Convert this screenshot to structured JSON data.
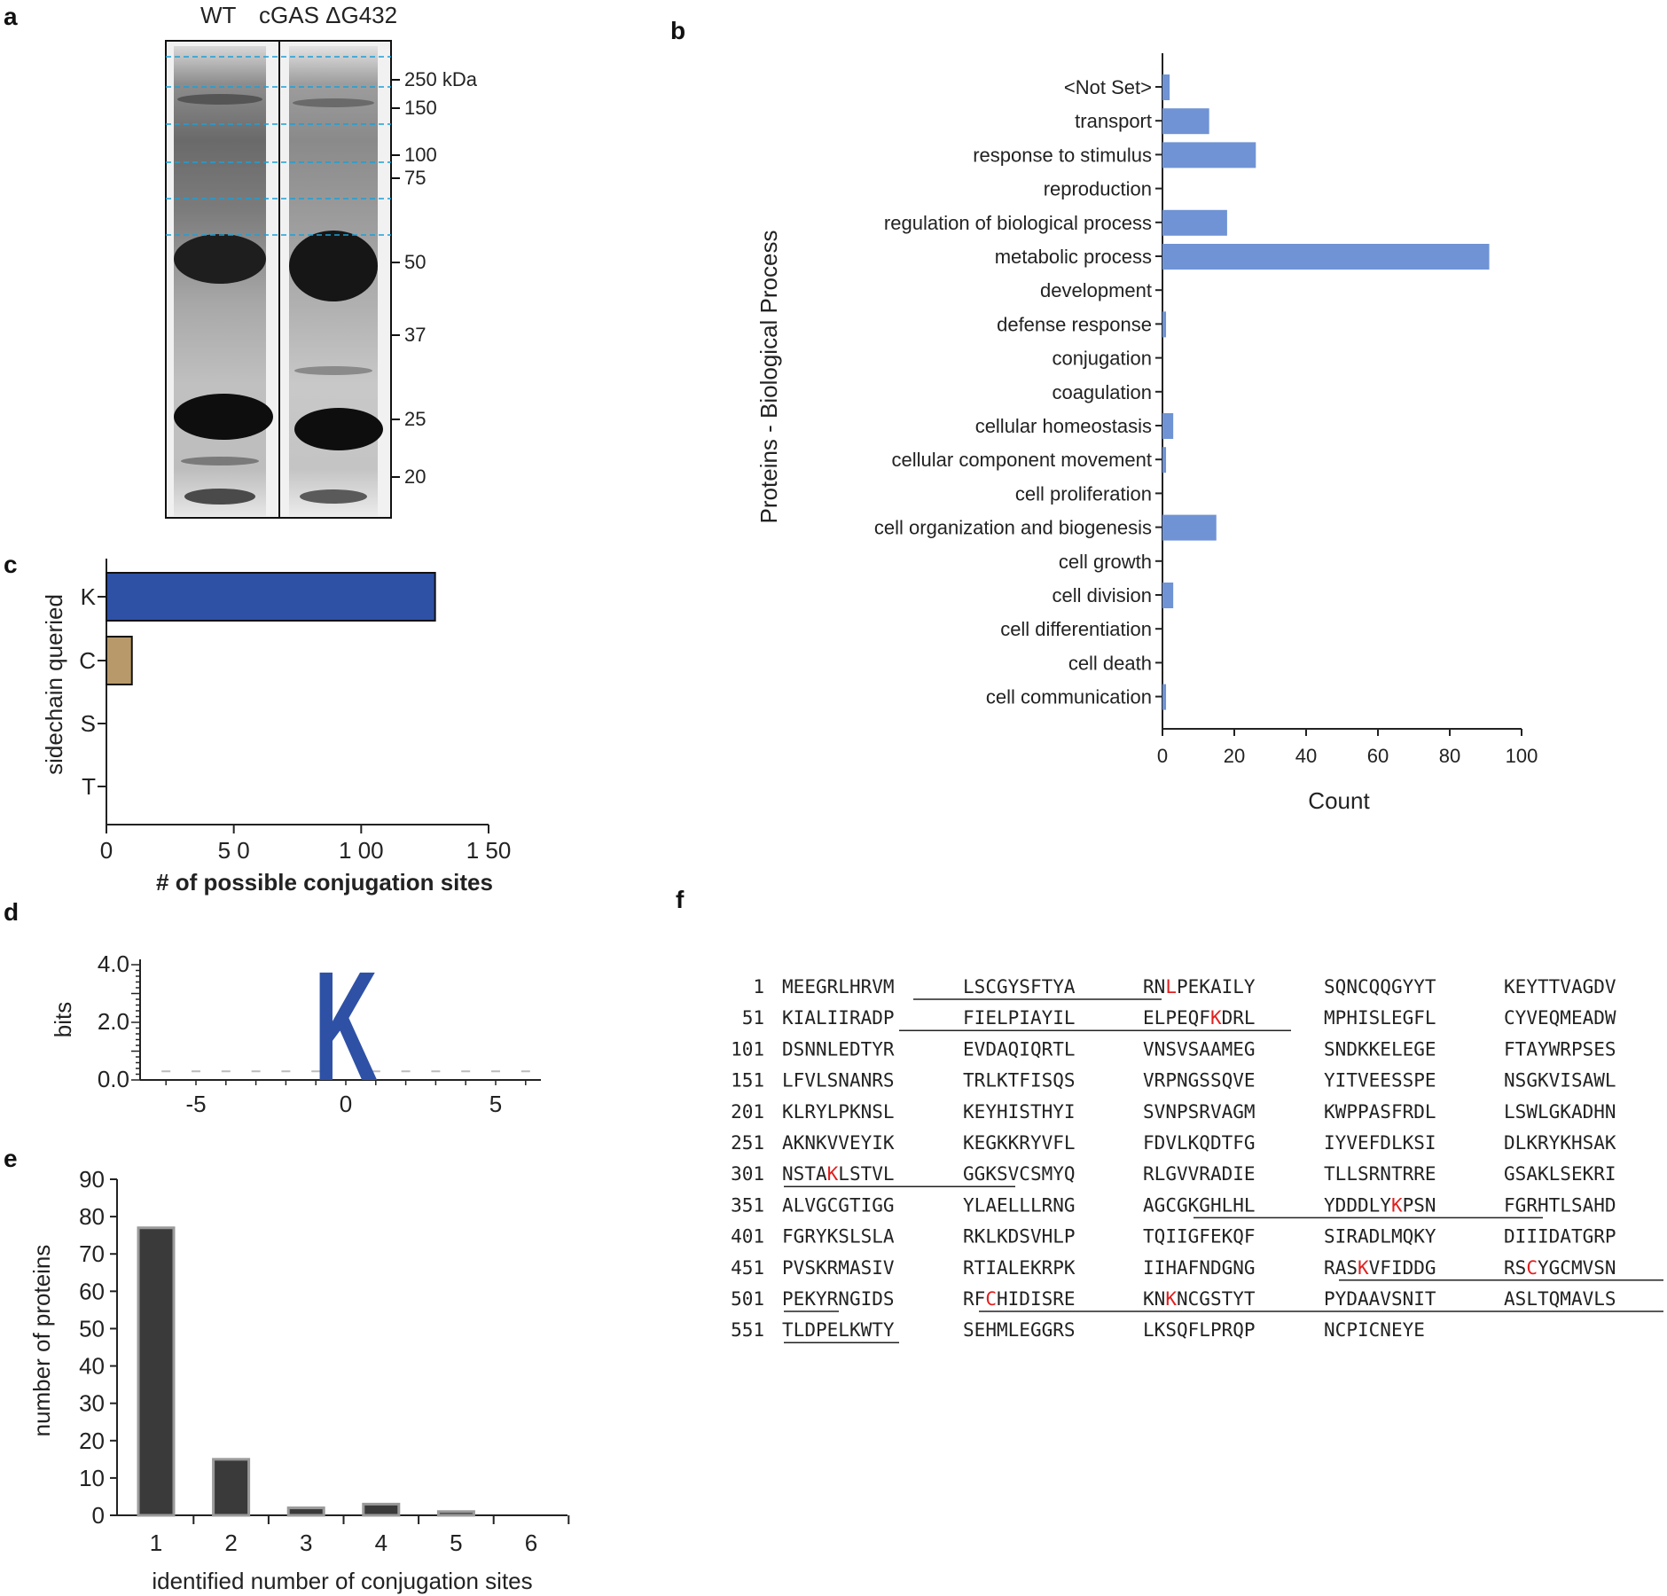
{
  "panels": {
    "a": {
      "letter": "a",
      "lanes": [
        "WT",
        "cGAS ΔG432"
      ],
      "markers": [
        {
          "label": "250 kDa",
          "y": 90
        },
        {
          "label": "150",
          "y": 122
        },
        {
          "label": "100",
          "y": 175
        },
        {
          "label": "75",
          "y": 201
        },
        {
          "label": "50",
          "y": 296
        },
        {
          "label": "37",
          "y": 378
        },
        {
          "label": "25",
          "y": 473
        },
        {
          "label": "20",
          "y": 538
        }
      ]
    },
    "b": {
      "letter": "b"
    },
    "c": {
      "letter": "c"
    },
    "d": {
      "letter": "d"
    },
    "e": {
      "letter": "e"
    },
    "f": {
      "letter": "f",
      "lines": [
        {
          "num": "1",
          "groups": [
            "MEEGRLHRVM",
            "LSCGYSFTYA",
            "RNLPEKAILY",
            "SQNCQQGYYT",
            "KEYTTVAGDV"
          ]
        },
        {
          "num": "51",
          "groups": [
            "KIALIIRADP",
            "FIELPIAYIL",
            "ELPEQFKDRL",
            "MPHISLEGFL",
            "CYVEQMEADW"
          ]
        },
        {
          "num": "101",
          "groups": [
            "DSNNLEDTYR",
            "EVDAQIQRTL",
            "VNSVSAAMEG",
            "SNDKKELEGE",
            "FTAYWRPSES"
          ]
        },
        {
          "num": "151",
          "groups": [
            "LFVLSNANRS",
            "TRLKTFISQS",
            "VRPNGSSQVE",
            "YITVEESSPE",
            "NSGKVISAWL"
          ]
        },
        {
          "num": "201",
          "groups": [
            "KLRYLPKNSL",
            "KEYHISTHYI",
            "SVNPSRVAGM",
            "KWPPASFRDL",
            "LSWLGKADHN"
          ]
        },
        {
          "num": "251",
          "groups": [
            "AKNKVVEYIK",
            "KEGKKRYVFL",
            "FDVLKQDTFG",
            "IYVEFDLKSI",
            "DLKRYKHSAK"
          ]
        },
        {
          "num": "301",
          "groups": [
            "NSTAKLSTVL",
            "GGKSVCSMYQ",
            "RLGVVRADIE",
            "TLLSRNTRRE",
            "GSAKLSEKRI"
          ]
        },
        {
          "num": "351",
          "groups": [
            "ALVGCGTIGG",
            "YLAELLLRNG",
            "AGCGKGHLHL",
            "YDDDLYKPSN",
            "FGRHTLSAHD"
          ]
        },
        {
          "num": "401",
          "groups": [
            "FGRYKSLSLA",
            "RKLKDSVHLP",
            "TQIIGFEKQF",
            "SIRADLMQKY",
            "DIIIDATGRP"
          ]
        },
        {
          "num": "451",
          "groups": [
            "PVSKRMASIV",
            "RTIALEKRPK",
            "IIHAFNDGNG",
            "RASKVFIDDG",
            "RSCYGCMVSN"
          ]
        },
        {
          "num": "501",
          "groups": [
            "PEKYRNGIDS",
            "RFCHIDISRE",
            "KNKNCGSTYT",
            "PYDAAVSNIT",
            "ASLTQMAVLS"
          ]
        },
        {
          "num": "551",
          "groups": [
            "TLDPELKWTY",
            "SEHMLEGGRS",
            "LKSQFLPRQP",
            "NCPICNEYE"
          ]
        }
      ],
      "highlight_color": "#e02020"
    }
  },
  "chart_data": [
    {
      "type": "bar",
      "orientation": "horizontal",
      "ylabel": "Proteins - Biological Process",
      "xlabel": "Count",
      "categories": [
        "<Not Set>",
        "transport",
        "response to stimulus",
        "reproduction",
        "regulation of biological process",
        "metabolic process",
        "development",
        "defense response",
        "conjugation",
        "coagulation",
        "cellular homeostasis",
        "cellular component movement",
        "cell proliferation",
        "cell organization and biogenesis",
        "cell growth",
        "cell division",
        "cell differentiation",
        "cell death",
        "cell communication"
      ],
      "values": [
        2,
        13,
        26,
        0,
        18,
        91,
        0,
        1,
        0,
        0,
        3,
        1,
        0,
        15,
        0,
        3,
        0,
        0,
        1
      ],
      "xlim": [
        0,
        100
      ],
      "xticks": [
        "0",
        "20",
        "40",
        "60",
        "80",
        "100"
      ],
      "color": "#6f93d4"
    },
    {
      "type": "bar",
      "orientation": "horizontal",
      "ylabel": "sidechain queried",
      "xlabel": "# of possible conjugation sites",
      "categories": [
        "K",
        "C",
        "S",
        "T"
      ],
      "values": [
        129,
        10,
        0,
        0
      ],
      "colors": [
        "#2e51a6",
        "#b89a6a",
        "#ffffff",
        "#ffffff"
      ],
      "xlim": [
        0,
        150
      ],
      "xticks": [
        "0",
        "5 0",
        "1 00",
        "1 50"
      ]
    },
    {
      "type": "sequence-logo",
      "ylabel": "bits",
      "ylim": [
        0,
        4
      ],
      "yticks": [
        "0.0",
        "2.0",
        "4.0"
      ],
      "xticks": [
        "-5",
        "0",
        "5"
      ],
      "positions": [
        -6,
        -5,
        -4,
        -3,
        -2,
        -1,
        0,
        1,
        2,
        3,
        4,
        5,
        6
      ],
      "letters": [
        {
          "position": 0,
          "letter": "K",
          "bits": 3.9
        }
      ],
      "color": "#2e51a6"
    },
    {
      "type": "bar",
      "ylabel": "number of proteins",
      "xlabel": "identified number of conjugation sites",
      "categories": [
        "1",
        "2",
        "3",
        "4",
        "5",
        "6"
      ],
      "values": [
        77,
        15,
        2,
        3,
        1,
        0
      ],
      "ylim": [
        0,
        90
      ],
      "yticks": [
        "0",
        "10",
        "20",
        "30",
        "40",
        "50",
        "60",
        "70",
        "80",
        "90"
      ],
      "color": "#3a3a3a"
    }
  ]
}
